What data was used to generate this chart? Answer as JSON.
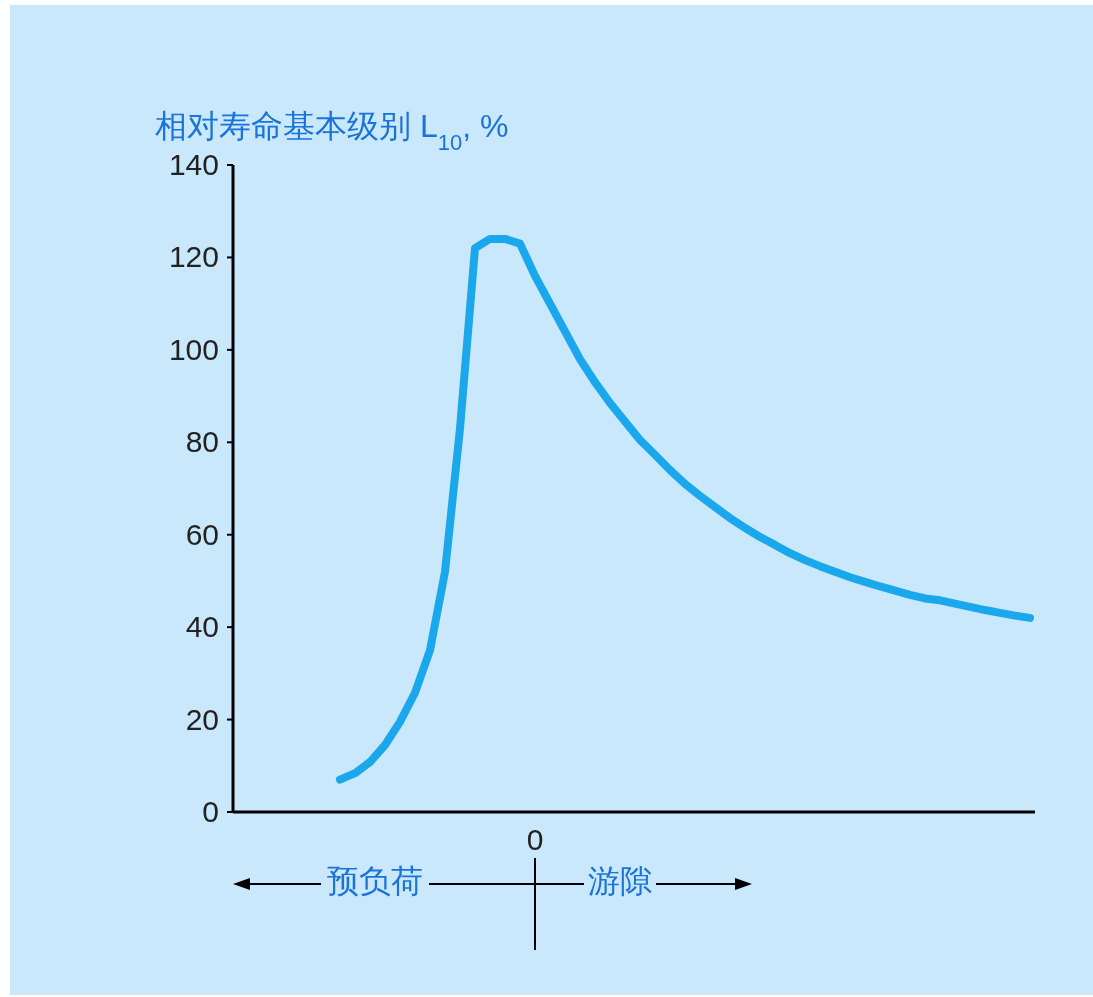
{
  "chart_data": {
    "type": "line",
    "ylabel": "相对寿命基本级别 L$_{10}$, %",
    "categories": [
      null,
      null,
      null,
      null,
      null,
      null,
      null,
      null,
      null,
      null,
      null,
      null,
      null,
      "0",
      null,
      null,
      null,
      null,
      null,
      null,
      null,
      null,
      null,
      null,
      null,
      null,
      null,
      null,
      null,
      null,
      null,
      null,
      null,
      null,
      null,
      null,
      null,
      null,
      null,
      null,
      null,
      null,
      null,
      null,
      null,
      null,
      null
    ],
    "values": [
      7,
      8.4,
      10.8,
      14.5,
      19.5,
      25.8,
      35,
      52,
      83,
      122,
      124,
      124,
      123,
      116,
      110,
      104,
      98,
      93,
      88.5,
      84.5,
      80.5,
      77.3,
      74,
      71,
      68.4,
      66,
      63.6,
      61.5,
      59.5,
      57.8,
      56,
      54.5,
      53.2,
      52,
      50.8,
      49.8,
      48.8,
      47.9,
      47,
      46.2,
      45.8,
      45.1,
      44.4,
      43.7,
      43.1,
      42.5,
      42
    ],
    "color": "#1aa7ec",
    "ylim": [
      0,
      140
    ],
    "yticks": [
      0,
      20,
      40,
      60,
      80,
      100,
      120,
      140
    ],
    "annotations": [
      "预负荷",
      "游隙"
    ]
  }
}
